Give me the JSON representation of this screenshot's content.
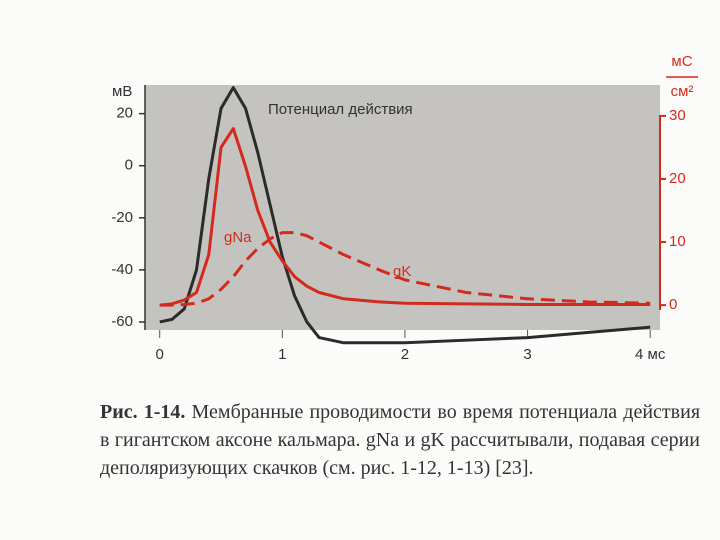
{
  "chart_data": {
    "type": "line",
    "title": "Потенциал действия",
    "y_label": "мВ",
    "y2_label": {
      "top": "мС",
      "bottom": "см²"
    },
    "x": [
      0,
      0.1,
      0.2,
      0.3,
      0.4,
      0.5,
      0.6,
      0.7,
      0.8,
      0.9,
      1.0,
      1.1,
      1.2,
      1.3,
      1.5,
      1.8,
      2.0,
      2.5,
      3.0,
      3.5,
      4.0
    ],
    "series": [
      {
        "name": "Потенциал действия",
        "color": "#2b2b2b",
        "dash": false,
        "values": [
          -60,
          -59,
          -55,
          -40,
          -5,
          22,
          30,
          22,
          5,
          -15,
          -35,
          -50,
          -60,
          -66,
          -68,
          -68,
          -68,
          -67,
          -66,
          -64,
          -62
        ]
      },
      {
        "name": "gNa",
        "color": "#d42a1e",
        "dash": false,
        "axis": "y2",
        "values": [
          0,
          0.2,
          0.8,
          2,
          8,
          25,
          28,
          22,
          15,
          10,
          7,
          4.5,
          3,
          2,
          1,
          0.5,
          0.3,
          0.2,
          0.1,
          0.1,
          0.1
        ]
      },
      {
        "name": "gK",
        "color": "#d42a1e",
        "dash": true,
        "axis": "y2",
        "values": [
          0,
          0,
          0.1,
          0.3,
          1,
          2.5,
          4.5,
          7,
          9,
          10.5,
          11.5,
          11.5,
          11,
          10,
          8,
          5.5,
          4,
          2,
          1,
          0.5,
          0.3
        ]
      }
    ],
    "xlim": [
      -0.12,
      4.08
    ],
    "xticks": [
      0,
      1,
      2,
      3,
      {
        "value": 4,
        "label": "4 мс"
      }
    ],
    "ylim": [
      -70,
      31
    ],
    "yticks": [
      -60,
      -40,
      -20,
      0,
      20
    ],
    "y2lim": [
      -6.8,
      34.9
    ],
    "y2ticks": [
      0,
      10,
      20,
      30
    ],
    "caption": {
      "label": "Рис. 1-14.",
      "text": "Мембранные проводимости во время потенциала действия в гигантском аксоне кальмара. gNa и gK рассчитывали, подавая серии деполяризующих скачков (см. рис. 1-12, 1-13) [23]."
    }
  }
}
